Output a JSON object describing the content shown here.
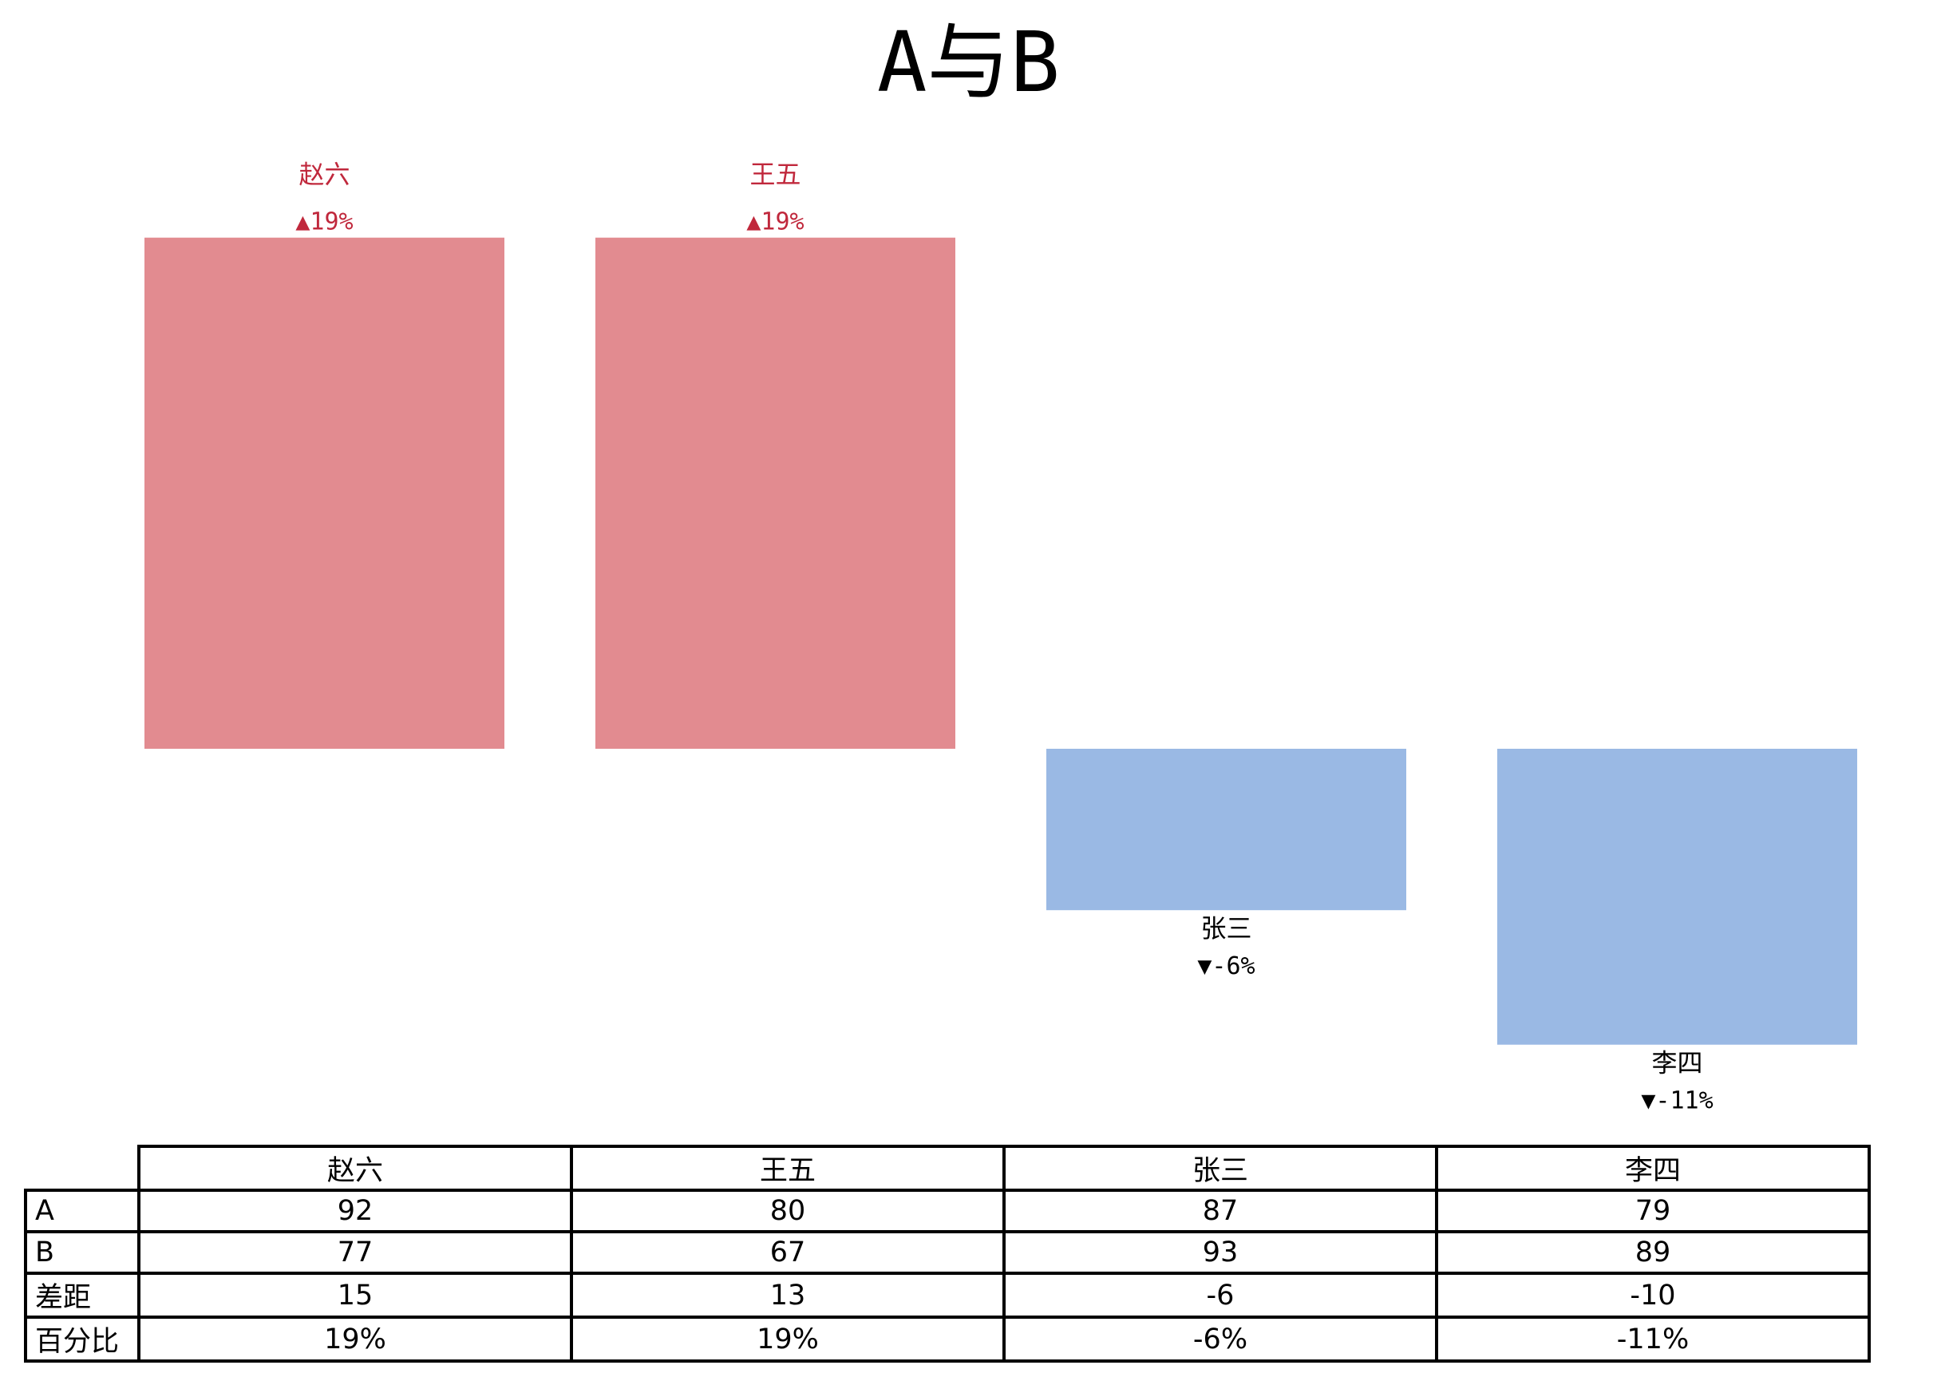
{
  "chart_data": {
    "type": "bar",
    "title": "A与B",
    "categories": [
      "赵六",
      "王五",
      "张三",
      "李四"
    ],
    "series": [
      {
        "name": "A",
        "values": [
          92,
          80,
          87,
          79
        ]
      },
      {
        "name": "B",
        "values": [
          77,
          67,
          93,
          89
        ]
      }
    ],
    "difference": [
      15,
      13,
      -6,
      -10
    ],
    "percent": [
      19,
      19,
      -6,
      -11
    ],
    "bar_labels": [
      "▲19%",
      "▲19%",
      "▼-6%",
      "▼-11%"
    ],
    "colors": {
      "positive": "#e28b90",
      "negative": "#9ab9e4",
      "positive_text": "#c0283c",
      "negative_text": "#000000"
    }
  },
  "table": {
    "header": [
      "赵六",
      "王五",
      "张三",
      "李四"
    ],
    "rows": [
      {
        "label": "A",
        "cells": [
          "92",
          "80",
          "87",
          "79"
        ]
      },
      {
        "label": "B",
        "cells": [
          "77",
          "67",
          "93",
          "89"
        ]
      },
      {
        "label": "差距",
        "cells": [
          "15",
          "13",
          "-6",
          "-10"
        ]
      },
      {
        "label": "百分比",
        "cells": [
          "19%",
          "19%",
          "-6%",
          "-11%"
        ]
      }
    ]
  }
}
